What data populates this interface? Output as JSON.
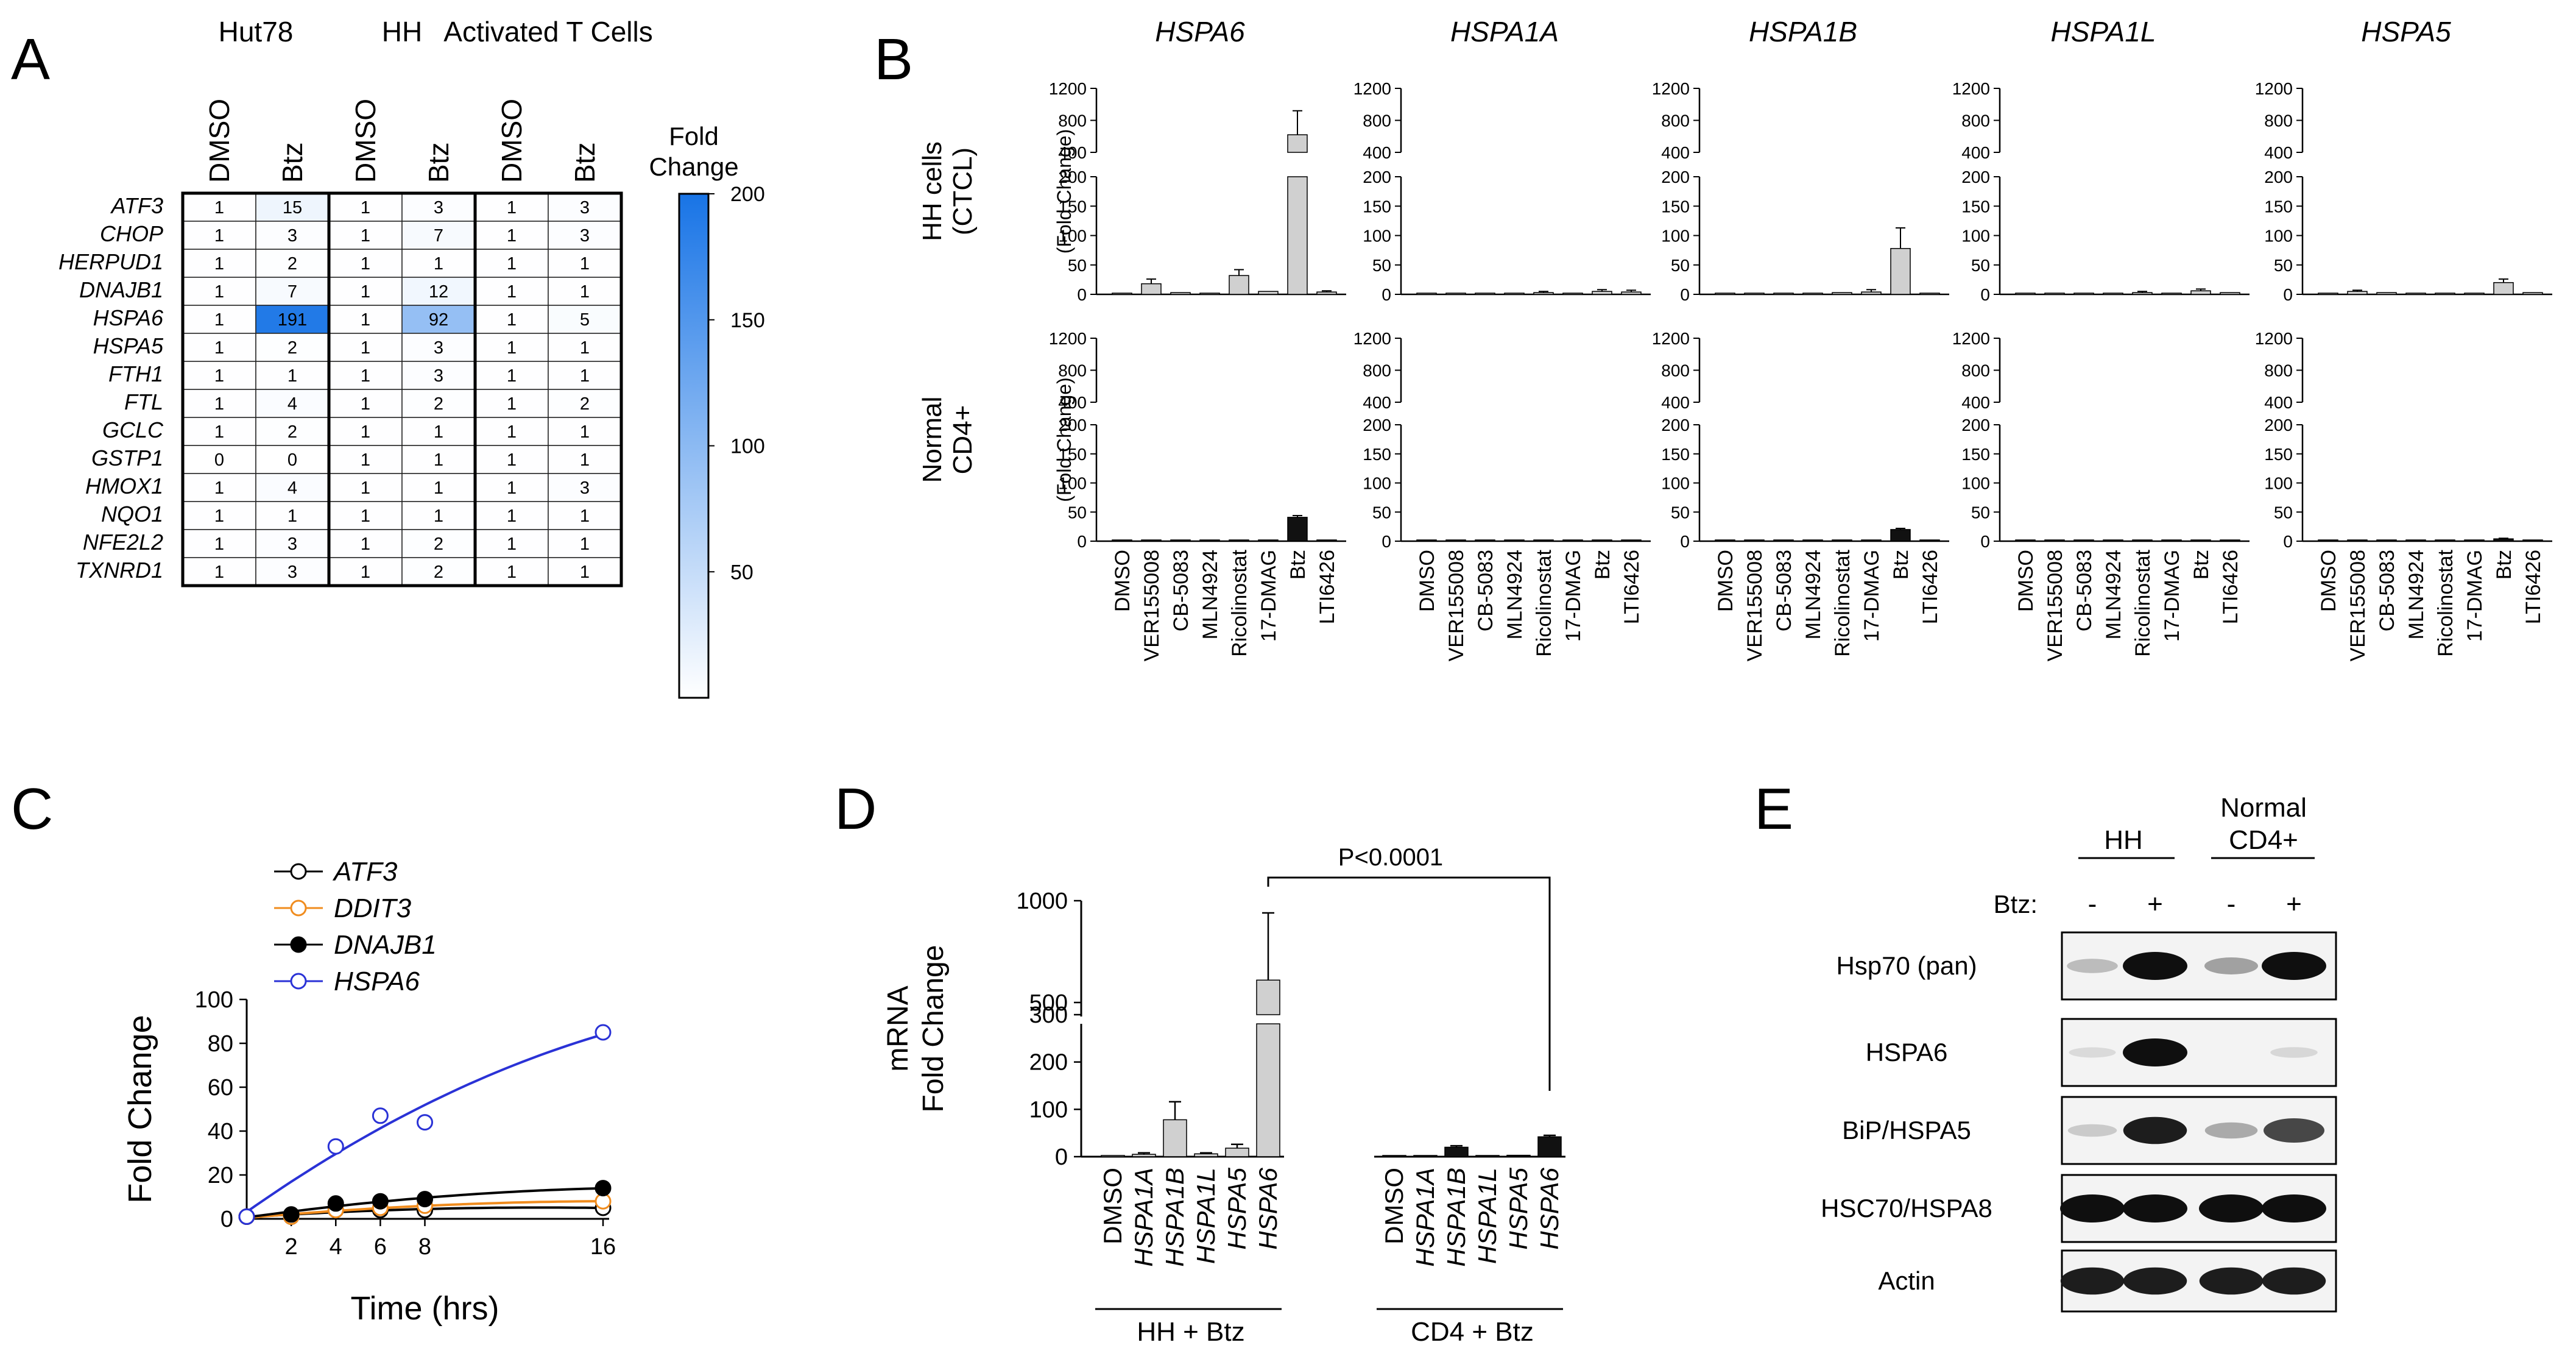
{
  "panels": {
    "a": {
      "letter": "A"
    },
    "b": {
      "letter": "B"
    },
    "c": {
      "letter": "C"
    },
    "d": {
      "letter": "D"
    },
    "e": {
      "letter": "E"
    }
  },
  "heatmap": {
    "groups": [
      "Hut78",
      "HH",
      "Activated T Cells"
    ],
    "conditions": [
      "DMSO",
      "Btz"
    ],
    "genes": [
      "ATF3",
      "CHOP",
      "HERPUD1",
      "DNAJB1",
      "HSPA6",
      "HSPA5",
      "FTH1",
      "FTL",
      "GCLC",
      "GSTP1",
      "HMOX1",
      "NQO1",
      "NFE2L2",
      "TXNRD1"
    ],
    "values": [
      [
        [
          1,
          15
        ],
        [
          1,
          3
        ],
        [
          1,
          3
        ]
      ],
      [
        [
          1,
          3
        ],
        [
          1,
          7
        ],
        [
          1,
          3
        ]
      ],
      [
        [
          1,
          2
        ],
        [
          1,
          1
        ],
        [
          1,
          1
        ]
      ],
      [
        [
          1,
          7
        ],
        [
          1,
          12
        ],
        [
          1,
          1
        ]
      ],
      [
        [
          1,
          191
        ],
        [
          1,
          92
        ],
        [
          1,
          5
        ]
      ],
      [
        [
          1,
          2
        ],
        [
          1,
          3
        ],
        [
          1,
          1
        ]
      ],
      [
        [
          1,
          1
        ],
        [
          1,
          3
        ],
        [
          1,
          1
        ]
      ],
      [
        [
          1,
          4
        ],
        [
          1,
          2
        ],
        [
          1,
          2
        ]
      ],
      [
        [
          1,
          2
        ],
        [
          1,
          1
        ],
        [
          1,
          1
        ]
      ],
      [
        [
          0,
          0
        ],
        [
          1,
          1
        ],
        [
          1,
          1
        ]
      ],
      [
        [
          1,
          4
        ],
        [
          1,
          1
        ],
        [
          1,
          3
        ]
      ],
      [
        [
          1,
          1
        ],
        [
          1,
          1
        ],
        [
          1,
          1
        ]
      ],
      [
        [
          1,
          3
        ],
        [
          1,
          2
        ],
        [
          1,
          1
        ]
      ],
      [
        [
          1,
          3
        ],
        [
          1,
          2
        ],
        [
          1,
          1
        ]
      ]
    ],
    "colorbar": {
      "title_line1": "Fold",
      "title_line2": "Change",
      "min": 0,
      "max": 200,
      "ticks": [
        "200",
        "150",
        "100",
        "50"
      ],
      "low_color": "#ffffff",
      "high_color": "#1874e6"
    }
  },
  "panel_b": {
    "genes": [
      "HSPA6",
      "HSPA1A",
      "HSPA1B",
      "HSPA1L",
      "HSPA5"
    ],
    "row_labels": [
      {
        "line1": "HH cells",
        "line2": "(CTCL)",
        "ylabel": "(Fold Change)"
      },
      {
        "line1": "Normal",
        "line2": "CD4+",
        "ylabel": "(Fold Change)"
      }
    ],
    "y_ticks_top": [
      "1200",
      "800",
      "400"
    ],
    "y_ticks_bottom": [
      "200",
      "150",
      "100",
      "50",
      "0"
    ],
    "categories": [
      "DMSO",
      "VER155008",
      "CB-5083",
      "MLN4924",
      "Ricolinostat",
      "17-DMAG",
      "Btz",
      "LTI6426"
    ],
    "colors": {
      "hh": "#d0d0d0",
      "cd4": "#111111"
    }
  },
  "chart_data": [
    {
      "type": "bar",
      "title": "HSPA6 / HH cells (CTCL)",
      "ylabel": "(Fold Change)",
      "categories": [
        "DMSO",
        "VER155008",
        "CB-5083",
        "MLN4924",
        "Ricolinostat",
        "17-DMAG",
        "Btz",
        "LTI6426"
      ],
      "values": [
        1,
        18,
        3,
        2,
        32,
        5,
        620,
        4
      ],
      "errors": [
        0,
        8,
        0,
        0,
        10,
        0,
        300,
        2
      ],
      "ylim": [
        0,
        1200
      ],
      "axis_break": [
        200,
        400
      ]
    },
    {
      "type": "bar",
      "title": "HSPA1A / HH cells (CTCL)",
      "ylabel": "(Fold Change)",
      "categories": [
        "DMSO",
        "VER155008",
        "CB-5083",
        "MLN4924",
        "Ricolinostat",
        "17-DMAG",
        "Btz",
        "LTI6426"
      ],
      "values": [
        1,
        2,
        1,
        1,
        3,
        1,
        5,
        4
      ],
      "errors": [
        0,
        0,
        0,
        0,
        2,
        0,
        3,
        3
      ],
      "ylim": [
        0,
        1200
      ],
      "axis_break": [
        200,
        400
      ]
    },
    {
      "type": "bar",
      "title": "HSPA1B / HH cells (CTCL)",
      "ylabel": "(Fold Change)",
      "categories": [
        "DMSO",
        "VER155008",
        "CB-5083",
        "MLN4924",
        "Ricolinostat",
        "17-DMAG",
        "Btz",
        "LTI6426"
      ],
      "values": [
        1,
        2,
        2,
        2,
        3,
        4,
        78,
        2
      ],
      "errors": [
        0,
        0,
        0,
        0,
        0,
        4,
        35,
        0
      ],
      "ylim": [
        0,
        1200
      ],
      "axis_break": [
        200,
        400
      ]
    },
    {
      "type": "bar",
      "title": "HSPA1L / HH cells (CTCL)",
      "ylabel": "(Fold Change)",
      "categories": [
        "DMSO",
        "VER155008",
        "CB-5083",
        "MLN4924",
        "Ricolinostat",
        "17-DMAG",
        "Btz",
        "LTI6426"
      ],
      "values": [
        1,
        1,
        1,
        1,
        3,
        2,
        6,
        3
      ],
      "errors": [
        0,
        0,
        0,
        0,
        2,
        0,
        3,
        0
      ],
      "ylim": [
        0,
        1200
      ],
      "axis_break": [
        200,
        400
      ]
    },
    {
      "type": "bar",
      "title": "HSPA5 / HH cells (CTCL)",
      "ylabel": "(Fold Change)",
      "categories": [
        "DMSO",
        "VER155008",
        "CB-5083",
        "MLN4924",
        "Ricolinostat",
        "17-DMAG",
        "Btz",
        "LTI6426"
      ],
      "values": [
        1,
        5,
        3,
        2,
        2,
        2,
        20,
        3
      ],
      "errors": [
        0,
        2,
        0,
        0,
        0,
        0,
        6,
        0
      ],
      "ylim": [
        0,
        1200
      ],
      "axis_break": [
        200,
        400
      ]
    },
    {
      "type": "bar",
      "title": "HSPA6 / Normal CD4+",
      "ylabel": "(Fold Change)",
      "categories": [
        "DMSO",
        "VER155008",
        "CB-5083",
        "MLN4924",
        "Ricolinostat",
        "17-DMAG",
        "Btz",
        "LTI6426"
      ],
      "values": [
        0,
        0,
        0,
        0,
        0,
        1,
        41,
        0
      ],
      "errors": [
        0,
        0,
        0,
        0,
        0,
        0,
        3,
        0
      ],
      "ylim": [
        0,
        1200
      ],
      "axis_break": [
        200,
        400
      ]
    },
    {
      "type": "bar",
      "title": "HSPA1A / Normal CD4+",
      "ylabel": "(Fold Change)",
      "categories": [
        "DMSO",
        "VER155008",
        "CB-5083",
        "MLN4924",
        "Ricolinostat",
        "17-DMAG",
        "Btz",
        "LTI6426"
      ],
      "values": [
        1,
        0,
        0,
        0,
        0,
        1,
        1,
        0
      ],
      "errors": [
        0,
        0,
        0,
        0,
        0,
        0,
        0,
        0
      ],
      "ylim": [
        0,
        1200
      ],
      "axis_break": [
        200,
        400
      ]
    },
    {
      "type": "bar",
      "title": "HSPA1B / Normal CD4+",
      "ylabel": "(Fold Change)",
      "categories": [
        "DMSO",
        "VER155008",
        "CB-5083",
        "MLN4924",
        "Ricolinostat",
        "17-DMAG",
        "Btz",
        "LTI6426"
      ],
      "values": [
        0,
        0,
        1,
        0,
        0,
        1,
        20,
        0
      ],
      "errors": [
        0,
        0,
        0,
        0,
        0,
        0,
        2,
        0
      ],
      "ylim": [
        0,
        1200
      ],
      "axis_break": [
        200,
        400
      ]
    },
    {
      "type": "bar",
      "title": "HSPA1L / Normal CD4+",
      "ylabel": "(Fold Change)",
      "categories": [
        "DMSO",
        "VER155008",
        "CB-5083",
        "MLN4924",
        "Ricolinostat",
        "17-DMAG",
        "Btz",
        "LTI6426"
      ],
      "values": [
        0,
        0,
        1,
        0,
        0,
        1,
        1,
        0
      ],
      "errors": [
        0,
        0,
        0,
        0,
        0,
        0,
        0,
        0
      ],
      "ylim": [
        0,
        1200
      ],
      "axis_break": [
        200,
        400
      ]
    },
    {
      "type": "bar",
      "title": "HSPA5 / Normal CD4+",
      "ylabel": "(Fold Change)",
      "categories": [
        "DMSO",
        "VER155008",
        "CB-5083",
        "MLN4924",
        "Ricolinostat",
        "17-DMAG",
        "Btz",
        "LTI6426"
      ],
      "values": [
        0,
        0,
        0,
        0,
        0,
        1,
        4,
        1
      ],
      "errors": [
        0,
        0,
        0,
        0,
        0,
        0,
        1,
        0
      ],
      "ylim": [
        0,
        1200
      ],
      "axis_break": [
        200,
        400
      ]
    },
    {
      "type": "line",
      "title": "",
      "xlabel": "Time (hrs)",
      "ylabel": "Fold Change",
      "xlim": [
        0,
        16
      ],
      "ylim": [
        0,
        100
      ],
      "x_ticks": [
        2,
        4,
        6,
        8,
        16
      ],
      "y_ticks": [
        0,
        20,
        40,
        60,
        80,
        100
      ],
      "series": [
        {
          "name": "ATF3",
          "color": "#000000",
          "marker": "open-circle",
          "x": [
            0,
            2,
            4,
            6,
            8,
            16
          ],
          "y": [
            1,
            1,
            4,
            4,
            4,
            5
          ]
        },
        {
          "name": "DDIT3",
          "color": "#f08c1e",
          "marker": "open-circle",
          "x": [
            0,
            2,
            4,
            6,
            8,
            16
          ],
          "y": [
            1,
            1,
            4,
            5,
            6,
            8
          ]
        },
        {
          "name": "DNAJB1",
          "color": "#000000",
          "marker": "filled-circle",
          "x": [
            0,
            2,
            4,
            6,
            8,
            16
          ],
          "y": [
            1,
            2,
            7,
            8,
            9,
            14
          ]
        },
        {
          "name": "HSPA6",
          "color": "#2a32d6",
          "marker": "open-circle",
          "x": [
            0,
            4,
            6,
            8,
            16
          ],
          "y": [
            1,
            33,
            47,
            44,
            85
          ]
        }
      ]
    },
    {
      "type": "bar",
      "title": "",
      "ylabel_line1": "mRNA",
      "ylabel_line2": "Fold Change",
      "y_ticks": [
        "0",
        "100",
        "200",
        "300",
        "500",
        "1000"
      ],
      "axis_break": [
        300,
        500
      ],
      "groups": [
        {
          "label": "HH + Btz",
          "color": "#d0d0d0",
          "categories": [
            "DMSO",
            "HSPA1A",
            "HSPA1B",
            "HSPA1L",
            "HSPA5",
            "HSPA6"
          ],
          "values": [
            1,
            5,
            78,
            6,
            18,
            610
          ],
          "errors": [
            0,
            3,
            38,
            2,
            8,
            330
          ]
        },
        {
          "label": "CD4 + Btz",
          "color": "#111111",
          "categories": [
            "DMSO",
            "HSPA1A",
            "HSPA1B",
            "HSPA1L",
            "HSPA5",
            "HSPA6"
          ],
          "values": [
            0,
            0,
            20,
            0,
            3,
            42
          ],
          "errors": [
            0,
            0,
            3,
            0,
            0,
            3
          ]
        }
      ],
      "annotation": "P<0.0001"
    }
  ],
  "blot": {
    "groups": [
      "HH",
      "Normal",
      "CD4+"
    ],
    "treatment_label": "Btz:",
    "treatment": [
      "-",
      "+",
      "-",
      "+"
    ],
    "bands": [
      {
        "label": "Hsp70 (pan)",
        "intensities": [
          0.25,
          1.0,
          0.4,
          1.0
        ]
      },
      {
        "label": "HSPA6",
        "intensities": [
          0.03,
          1.0,
          0.0,
          0.05
        ]
      },
      {
        "label": "BiP/HSPA5",
        "intensities": [
          0.15,
          0.95,
          0.35,
          0.8
        ]
      },
      {
        "label": "HSC70/HSPA8",
        "intensities": [
          1.0,
          1.0,
          1.0,
          1.0
        ]
      },
      {
        "label": "Actin",
        "intensities": [
          0.95,
          0.95,
          0.95,
          0.95
        ]
      }
    ]
  }
}
